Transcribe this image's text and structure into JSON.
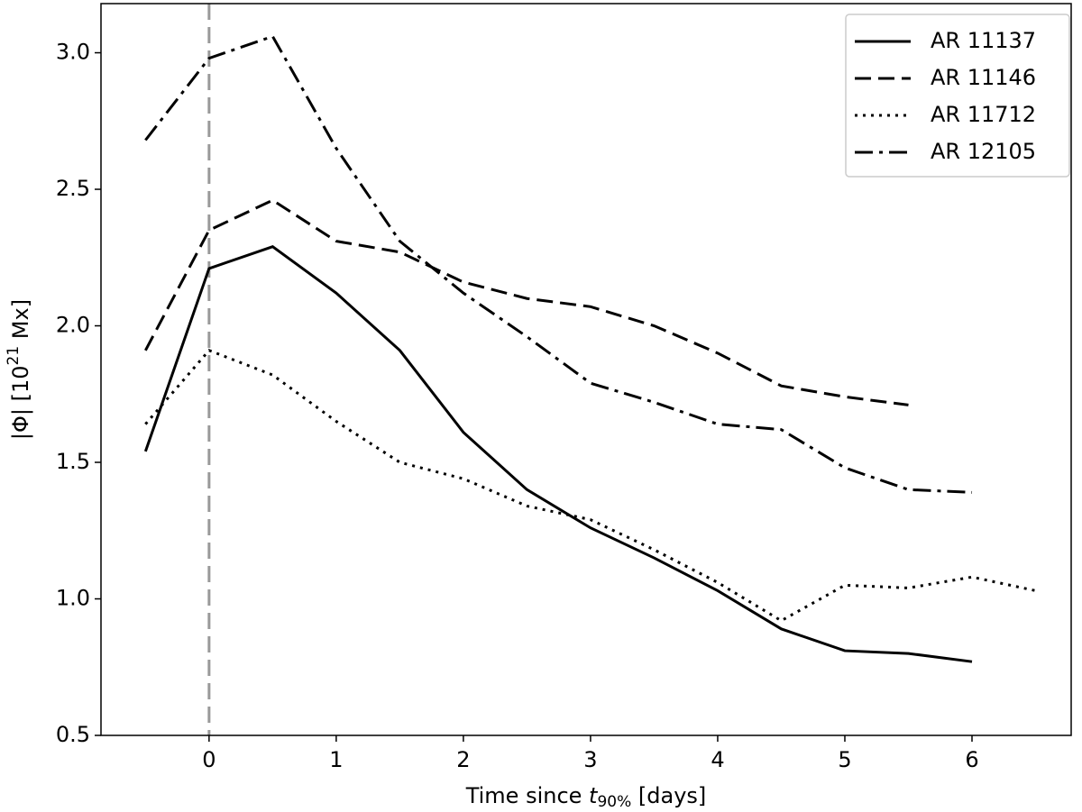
{
  "chart_data": {
    "type": "line",
    "xlabel": {
      "text": "Time since ",
      "var": "t",
      "sub": "90%",
      "unit": " [days]"
    },
    "ylabel": {
      "text": "|Φ| [10",
      "sup": "21",
      "unit": " Mx]"
    },
    "x": [
      -0.5,
      0,
      0.5,
      1,
      1.5,
      2,
      2.5,
      3,
      3.5,
      4,
      4.5,
      5,
      5.5,
      6,
      6.5
    ],
    "series": [
      {
        "name": "AR 11137",
        "color": "#000000",
        "linestyle": "solid",
        "values": [
          1.54,
          2.21,
          2.29,
          2.12,
          1.91,
          1.61,
          1.4,
          1.26,
          1.15,
          1.03,
          0.89,
          0.81,
          0.8,
          0.77,
          null
        ]
      },
      {
        "name": "AR 11146",
        "color": "#000000",
        "linestyle": "dashed",
        "values": [
          1.91,
          2.35,
          2.46,
          2.31,
          2.27,
          2.16,
          2.1,
          2.07,
          2.0,
          1.9,
          1.78,
          1.74,
          1.71,
          null,
          null
        ]
      },
      {
        "name": "AR 11712",
        "color": "#000000",
        "linestyle": "dotted",
        "values": [
          1.64,
          1.91,
          1.82,
          1.65,
          1.5,
          1.44,
          1.34,
          1.29,
          1.18,
          1.06,
          0.92,
          1.05,
          1.04,
          1.08,
          1.03
        ]
      },
      {
        "name": "AR 12105",
        "color": "#000000",
        "linestyle": "dashdot",
        "values": [
          2.68,
          2.98,
          3.06,
          2.65,
          2.31,
          2.12,
          1.96,
          1.79,
          1.72,
          1.64,
          1.62,
          1.48,
          1.4,
          1.39,
          null
        ]
      }
    ],
    "vline": {
      "x": 0,
      "color": "#999999",
      "linestyle": "dashed"
    },
    "xlim": [
      -0.85,
      6.78
    ],
    "xticks": [
      0,
      1,
      2,
      3,
      4,
      5,
      6
    ],
    "ylim": [
      0.5,
      3.18
    ],
    "yticks": [
      0.5,
      {
        "value": 1.0,
        "label": "1.0"
      },
      1.5,
      {
        "value": 2.0,
        "label": "2.0"
      },
      2.5,
      {
        "value": 3.0,
        "label": "3.0"
      }
    ],
    "legend": "upper right",
    "grid": false
  }
}
